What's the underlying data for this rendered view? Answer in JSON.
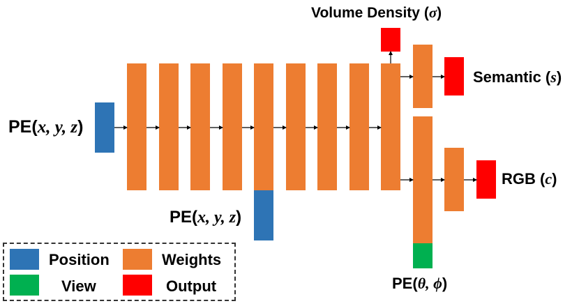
{
  "colors": {
    "position": "#2e74b5",
    "weights": "#ed7d31",
    "view": "#00b050",
    "output": "#ff0000",
    "arrow": "#000000"
  },
  "labels": {
    "pe_xyz_input": {
      "prefix": "PE(",
      "vars": "x, y, z",
      "suffix": ")"
    },
    "pe_xyz_skip": {
      "prefix": "PE(",
      "vars": "x, y, z",
      "suffix": ")"
    },
    "pe_view": {
      "prefix": "PE(",
      "vars": "θ, ϕ",
      "suffix": ")"
    },
    "volume_density": {
      "prefix": "Volume Density (",
      "vars": "σ",
      "suffix": ")"
    },
    "semantic": {
      "prefix": "Semantic (",
      "vars": "s",
      "suffix": ")"
    },
    "rgb": {
      "prefix": "RGB (",
      "vars": "c",
      "suffix": ")"
    }
  },
  "legend": {
    "position": "Position",
    "weights": "Weights",
    "view": "View",
    "output": "Output"
  }
}
